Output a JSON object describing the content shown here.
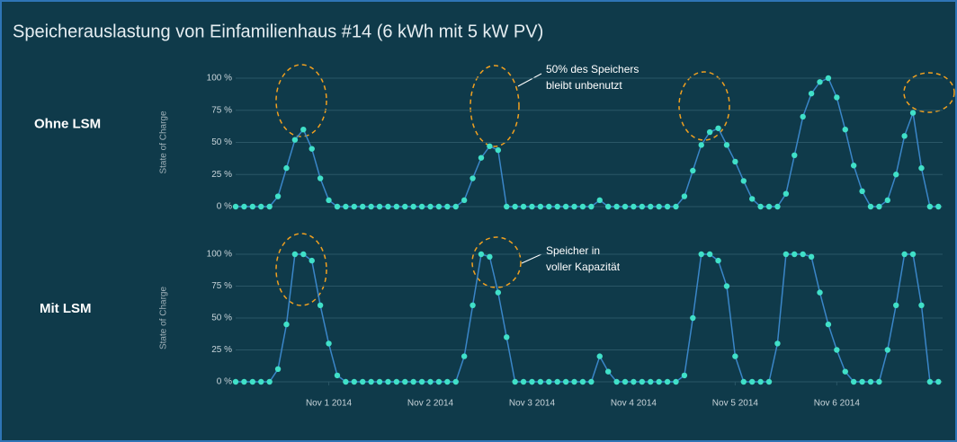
{
  "title": "Speicherauslastung von Einfamilienhaus #14 (6 kWh mit 5 kW PV)",
  "chart_data": [
    {
      "type": "line",
      "label": "Ohne LSM",
      "ylabel": "State of Charge",
      "annotation": [
        "50% des Speichers",
        "bleibt unbenutzt"
      ],
      "color": "#40e0c8",
      "line_color": "#3a86c8",
      "xlim": [
        "2014-10-31T02:00",
        "2014-11-07T01:00"
      ],
      "ylim": [
        0,
        100
      ],
      "yticks": [
        {
          "value": 0,
          "label": "0 %"
        },
        {
          "value": 25,
          "label": "25 %"
        },
        {
          "value": 50,
          "label": "50 %"
        },
        {
          "value": 75,
          "label": "75 %"
        },
        {
          "value": 100,
          "label": "100 %"
        }
      ],
      "x": [
        "2014-10-31T02:00",
        "2014-10-31T04:00",
        "2014-10-31T06:00",
        "2014-10-31T08:00",
        "2014-10-31T10:00",
        "2014-10-31T12:00",
        "2014-10-31T14:00",
        "2014-10-31T16:00",
        "2014-10-31T18:00",
        "2014-10-31T20:00",
        "2014-10-31T22:00",
        "2014-11-01T00:00",
        "2014-11-01T02:00",
        "2014-11-01T04:00",
        "2014-11-01T06:00",
        "2014-11-01T08:00",
        "2014-11-01T10:00",
        "2014-11-01T12:00",
        "2014-11-01T14:00",
        "2014-11-01T16:00",
        "2014-11-01T18:00",
        "2014-11-01T20:00",
        "2014-11-01T22:00",
        "2014-11-02T00:00",
        "2014-11-02T02:00",
        "2014-11-02T04:00",
        "2014-11-02T06:00",
        "2014-11-02T08:00",
        "2014-11-02T10:00",
        "2014-11-02T12:00",
        "2014-11-02T14:00",
        "2014-11-02T16:00",
        "2014-11-02T18:00",
        "2014-11-02T20:00",
        "2014-11-02T22:00",
        "2014-11-03T00:00",
        "2014-11-03T02:00",
        "2014-11-03T04:00",
        "2014-11-03T06:00",
        "2014-11-03T08:00",
        "2014-11-03T10:00",
        "2014-11-03T12:00",
        "2014-11-03T14:00",
        "2014-11-03T16:00",
        "2014-11-03T18:00",
        "2014-11-03T20:00",
        "2014-11-03T22:00",
        "2014-11-04T00:00",
        "2014-11-04T02:00",
        "2014-11-04T04:00",
        "2014-11-04T06:00",
        "2014-11-04T08:00",
        "2014-11-04T10:00",
        "2014-11-04T12:00",
        "2014-11-04T14:00",
        "2014-11-04T16:00",
        "2014-11-04T18:00",
        "2014-11-04T20:00",
        "2014-11-04T22:00",
        "2014-11-05T00:00",
        "2014-11-05T02:00",
        "2014-11-05T04:00",
        "2014-11-05T06:00",
        "2014-11-05T08:00",
        "2014-11-05T10:00",
        "2014-11-05T12:00",
        "2014-11-05T14:00",
        "2014-11-05T16:00",
        "2014-11-05T18:00",
        "2014-11-05T20:00",
        "2014-11-05T22:00",
        "2014-11-06T00:00",
        "2014-11-06T02:00",
        "2014-11-06T04:00",
        "2014-11-06T06:00",
        "2014-11-06T08:00",
        "2014-11-06T10:00",
        "2014-11-06T12:00",
        "2014-11-06T14:00",
        "2014-11-06T16:00",
        "2014-11-06T18:00",
        "2014-11-06T20:00",
        "2014-11-06T22:00",
        "2014-11-07T00:00"
      ],
      "values": [
        0,
        0,
        0,
        0,
        0,
        8,
        30,
        52,
        60,
        45,
        22,
        5,
        0,
        0,
        0,
        0,
        0,
        0,
        0,
        0,
        0,
        0,
        0,
        0,
        0,
        0,
        0,
        5,
        22,
        38,
        47,
        44,
        0,
        0,
        0,
        0,
        0,
        0,
        0,
        0,
        0,
        0,
        0,
        5,
        0,
        0,
        0,
        0,
        0,
        0,
        0,
        0,
        0,
        8,
        28,
        48,
        58,
        61,
        48,
        35,
        20,
        6,
        0,
        0,
        0,
        10,
        40,
        70,
        88,
        97,
        100,
        85,
        60,
        32,
        12,
        0,
        0,
        5,
        25,
        55,
        73,
        30,
        0,
        0
      ]
    },
    {
      "type": "line",
      "label": "Mit LSM",
      "ylabel": "State of Charge",
      "annotation": [
        "Speicher in",
        "voller Kapazität"
      ],
      "color": "#40e0c8",
      "line_color": "#3a86c8",
      "xlim": [
        "2014-10-31T02:00",
        "2014-11-07T01:00"
      ],
      "xticks": [
        {
          "value": "2014-11-01T00:00",
          "label": "Nov 1 2014"
        },
        {
          "value": "2014-11-02T00:00",
          "label": "Nov 2 2014"
        },
        {
          "value": "2014-11-03T00:00",
          "label": "Nov 3 2014"
        },
        {
          "value": "2014-11-04T00:00",
          "label": "Nov 4 2014"
        },
        {
          "value": "2014-11-05T00:00",
          "label": "Nov 5 2014"
        },
        {
          "value": "2014-11-06T00:00",
          "label": "Nov 6 2014"
        }
      ],
      "ylim": [
        0,
        100
      ],
      "yticks": [
        {
          "value": 0,
          "label": "0 %"
        },
        {
          "value": 25,
          "label": "25 %"
        },
        {
          "value": 50,
          "label": "50 %"
        },
        {
          "value": 75,
          "label": "75 %"
        },
        {
          "value": 100,
          "label": "100 %"
        }
      ],
      "x": [
        "2014-10-31T02:00",
        "2014-10-31T04:00",
        "2014-10-31T06:00",
        "2014-10-31T08:00",
        "2014-10-31T10:00",
        "2014-10-31T12:00",
        "2014-10-31T14:00",
        "2014-10-31T16:00",
        "2014-10-31T18:00",
        "2014-10-31T20:00",
        "2014-10-31T22:00",
        "2014-11-01T00:00",
        "2014-11-01T02:00",
        "2014-11-01T04:00",
        "2014-11-01T06:00",
        "2014-11-01T08:00",
        "2014-11-01T10:00",
        "2014-11-01T12:00",
        "2014-11-01T14:00",
        "2014-11-01T16:00",
        "2014-11-01T18:00",
        "2014-11-01T20:00",
        "2014-11-01T22:00",
        "2014-11-02T00:00",
        "2014-11-02T02:00",
        "2014-11-02T04:00",
        "2014-11-02T06:00",
        "2014-11-02T08:00",
        "2014-11-02T10:00",
        "2014-11-02T12:00",
        "2014-11-02T14:00",
        "2014-11-02T16:00",
        "2014-11-02T18:00",
        "2014-11-02T20:00",
        "2014-11-02T22:00",
        "2014-11-03T00:00",
        "2014-11-03T02:00",
        "2014-11-03T04:00",
        "2014-11-03T06:00",
        "2014-11-03T08:00",
        "2014-11-03T10:00",
        "2014-11-03T12:00",
        "2014-11-03T14:00",
        "2014-11-03T16:00",
        "2014-11-03T18:00",
        "2014-11-03T20:00",
        "2014-11-03T22:00",
        "2014-11-04T00:00",
        "2014-11-04T02:00",
        "2014-11-04T04:00",
        "2014-11-04T06:00",
        "2014-11-04T08:00",
        "2014-11-04T10:00",
        "2014-11-04T12:00",
        "2014-11-04T14:00",
        "2014-11-04T16:00",
        "2014-11-04T18:00",
        "2014-11-04T20:00",
        "2014-11-04T22:00",
        "2014-11-05T00:00",
        "2014-11-05T02:00",
        "2014-11-05T04:00",
        "2014-11-05T06:00",
        "2014-11-05T08:00",
        "2014-11-05T10:00",
        "2014-11-05T12:00",
        "2014-11-05T14:00",
        "2014-11-05T16:00",
        "2014-11-05T18:00",
        "2014-11-05T20:00",
        "2014-11-05T22:00",
        "2014-11-06T00:00",
        "2014-11-06T02:00",
        "2014-11-06T04:00",
        "2014-11-06T06:00",
        "2014-11-06T08:00",
        "2014-11-06T10:00",
        "2014-11-06T12:00",
        "2014-11-06T14:00",
        "2014-11-06T16:00",
        "2014-11-06T18:00",
        "2014-11-06T20:00",
        "2014-11-06T22:00",
        "2014-11-07T00:00"
      ],
      "values": [
        0,
        0,
        0,
        0,
        0,
        10,
        45,
        100,
        100,
        95,
        60,
        30,
        5,
        0,
        0,
        0,
        0,
        0,
        0,
        0,
        0,
        0,
        0,
        0,
        0,
        0,
        0,
        20,
        60,
        100,
        98,
        70,
        35,
        0,
        0,
        0,
        0,
        0,
        0,
        0,
        0,
        0,
        0,
        20,
        8,
        0,
        0,
        0,
        0,
        0,
        0,
        0,
        0,
        5,
        50,
        100,
        100,
        95,
        75,
        20,
        0,
        0,
        0,
        0,
        30,
        100,
        100,
        100,
        98,
        70,
        45,
        25,
        8,
        0,
        0,
        0,
        0,
        25,
        60,
        100,
        100,
        60,
        0,
        0
      ]
    }
  ]
}
